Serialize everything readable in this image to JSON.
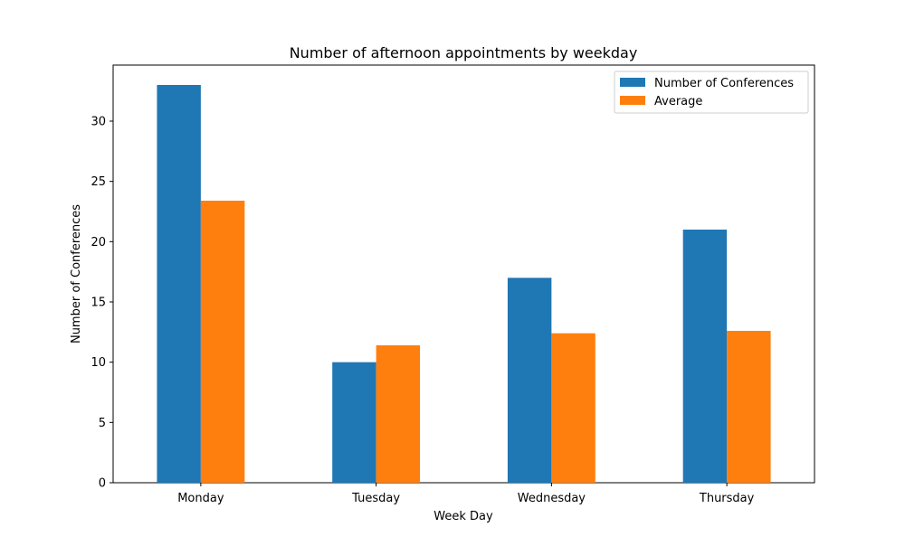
{
  "chart_data": {
    "type": "bar",
    "title": "Number of afternoon appointments by weekday",
    "xlabel": "Week Day",
    "ylabel": "Number of Conferences",
    "categories": [
      "Monday",
      "Tuesday",
      "Wednesday",
      "Thursday"
    ],
    "series": [
      {
        "name": "Number of Conferences",
        "color": "#1f77b4",
        "values": [
          33,
          10,
          17,
          21
        ]
      },
      {
        "name": "Average",
        "color": "#ff7f0e",
        "values": [
          23.4,
          11.4,
          12.4,
          12.6
        ]
      }
    ],
    "ylim": [
      0,
      34.65
    ],
    "yticks": [
      0,
      5,
      10,
      15,
      20,
      25,
      30
    ],
    "grid": false,
    "legend_position": "top-right"
  }
}
